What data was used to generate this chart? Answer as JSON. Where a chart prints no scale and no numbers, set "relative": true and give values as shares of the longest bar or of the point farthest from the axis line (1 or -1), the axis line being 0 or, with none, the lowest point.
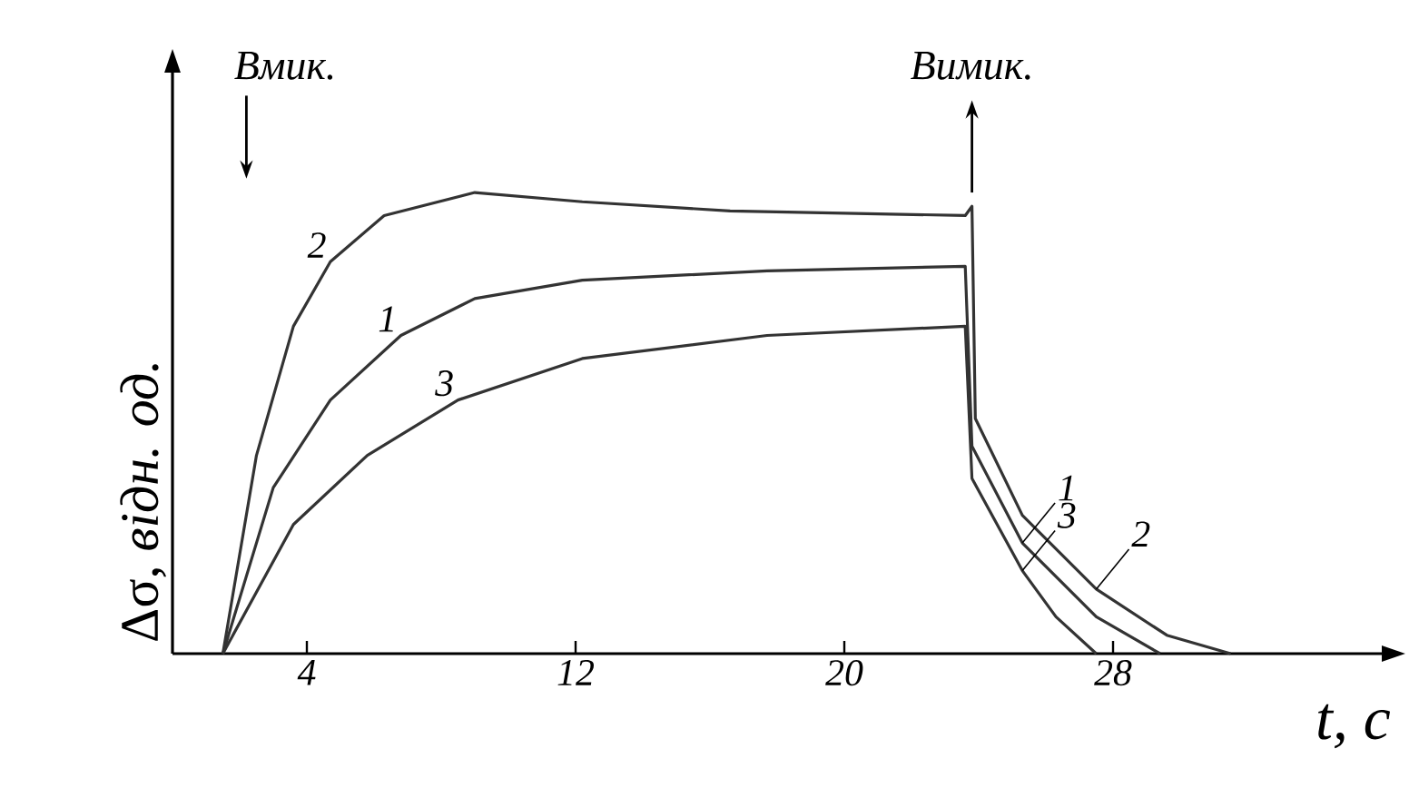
{
  "chart_data": {
    "type": "line",
    "relative": true,
    "xlabel": "t, c",
    "ylabel": "Δσ, *відн. од.*",
    "xlim": [
      0,
      36
    ],
    "xticks": [
      4,
      12,
      20,
      28
    ],
    "tick_labels": "x",
    "grid": false,
    "marker": "none",
    "line_style": "solid",
    "annotations": [
      "Вмик.",
      "Вимик."
    ],
    "series": [
      {
        "name": "2",
        "color": "#333333",
        "x": [
          1.5,
          2.5,
          3.6,
          4.7,
          6.3,
          9,
          12.2,
          16.6,
          23.6,
          23.8,
          23.9,
          25.3,
          27.5,
          29.6,
          31.5
        ],
        "values": [
          0,
          0.43,
          0.71,
          0.85,
          0.95,
          1,
          0.98,
          0.96,
          0.95,
          0.97,
          0.51,
          0.3,
          0.14,
          0.04,
          0
        ]
      },
      {
        "name": "1",
        "color": "#333333",
        "x": [
          1.5,
          3.0,
          4.7,
          6.8,
          9,
          12.2,
          17.7,
          23.6,
          23.8,
          25.3,
          27.5,
          29.4
        ],
        "values": [
          0,
          0.36,
          0.55,
          0.69,
          0.77,
          0.81,
          0.83,
          0.84,
          0.45,
          0.24,
          0.08,
          0
        ]
      },
      {
        "name": "3",
        "color": "#333333",
        "x": [
          1.5,
          3.6,
          5.8,
          8.5,
          12.2,
          17.7,
          23.6,
          23.8,
          25.3,
          26.3,
          27.5
        ],
        "values": [
          0,
          0.28,
          0.43,
          0.55,
          0.64,
          0.69,
          0.71,
          0.38,
          0.18,
          0.08,
          0
        ]
      }
    ]
  }
}
